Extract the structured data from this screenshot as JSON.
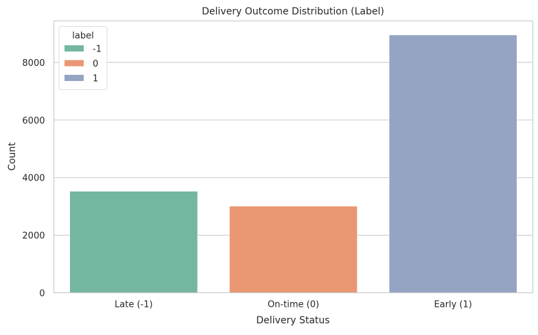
{
  "chart_data": {
    "type": "bar",
    "title": "Delivery Outcome Distribution (Label)",
    "xlabel": "Delivery Status",
    "ylabel": "Count",
    "categories": [
      "Late (-1)",
      "On-time (0)",
      "Early (1)"
    ],
    "values": [
      3524,
      3007,
      8952
    ],
    "ylim": [
      0,
      9440
    ],
    "yticks": [
      0,
      2000,
      4000,
      6000,
      8000
    ],
    "grid": true,
    "legend": {
      "title": "label",
      "placement": "top-left",
      "entries": [
        "-1",
        "0",
        "1"
      ]
    },
    "colors": [
      "#74b6a0",
      "#e99873",
      "#95a4c3"
    ]
  }
}
